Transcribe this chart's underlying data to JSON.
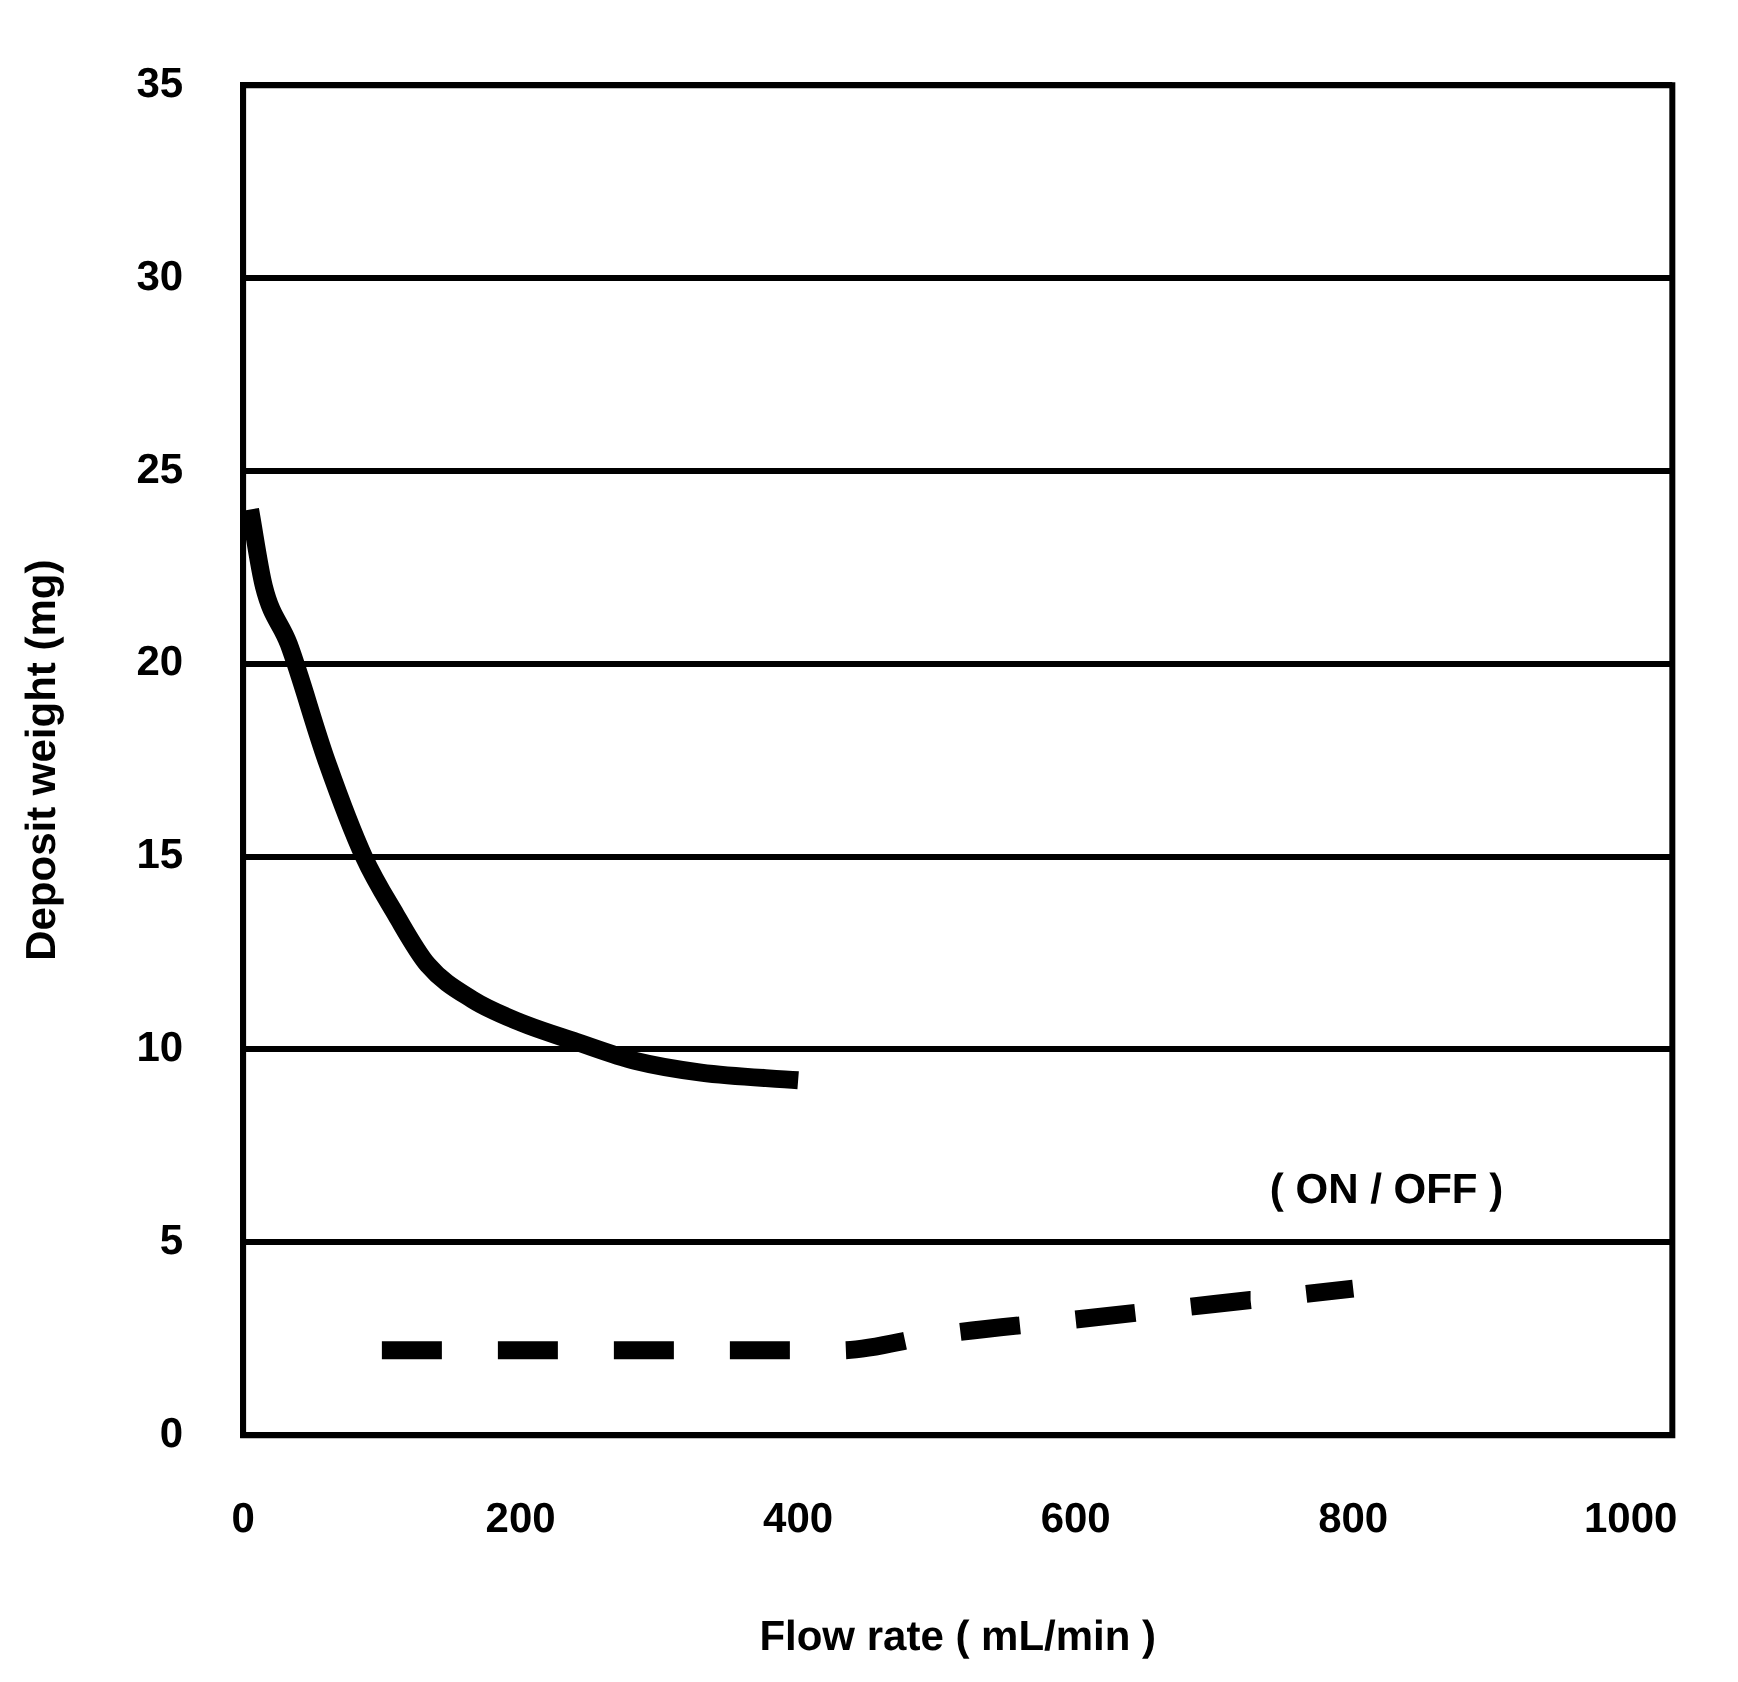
{
  "chart_data": {
    "type": "line",
    "xlabel": "Flow rate ( mL/min )",
    "ylabel": "Deposit weight (mg)",
    "xlim": [
      0,
      1030
    ],
    "xticks": [
      0,
      200,
      400,
      600,
      800,
      1000
    ],
    "ylim": [
      0,
      35
    ],
    "yticks": [
      0,
      5,
      10,
      15,
      20,
      25,
      30,
      35
    ],
    "grid": "y",
    "legend": false,
    "marker": "none",
    "series": [
      {
        "color": "#000000",
        "line_style": "solid",
        "x": [
          5,
          15,
          33,
          60,
          87,
          110,
          133,
          165,
          200,
          240,
          283,
          330,
          400
        ],
        "values": [
          24,
          22,
          20.5,
          17.5,
          15,
          13.5,
          12.2,
          11.3,
          10.7,
          10.2,
          9.7,
          9.4,
          9.2
        ]
      },
      {
        "name": "( ON / OFF )",
        "color": "#000000",
        "line_style": "dashed",
        "x": [
          100,
          200,
          300,
          400,
          430,
          500,
          600,
          700,
          800
        ],
        "values": [
          2.2,
          2.2,
          2.2,
          2.2,
          2.2,
          2.6,
          3.0,
          3.4,
          3.8
        ]
      }
    ]
  }
}
